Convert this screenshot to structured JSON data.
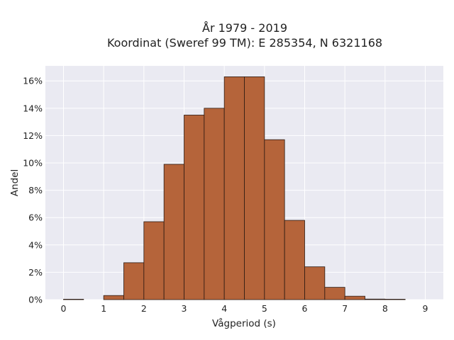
{
  "chart_data": {
    "type": "bar",
    "title_lines": [
      "År 1979 - 2019",
      "Koordinat (Sweref 99 TM): E 285354, N 6321168"
    ],
    "xlabel": "Vågperiod (s)",
    "ylabel": "Andel",
    "bin_width": 0.5,
    "bins": [
      {
        "x0": 0.0,
        "x1": 0.5,
        "value": 0.03
      },
      {
        "x0": 0.5,
        "x1": 1.0,
        "value": 0.0
      },
      {
        "x0": 1.0,
        "x1": 1.5,
        "value": 0.3
      },
      {
        "x0": 1.5,
        "x1": 2.0,
        "value": 2.7
      },
      {
        "x0": 2.0,
        "x1": 2.5,
        "value": 5.7
      },
      {
        "x0": 2.5,
        "x1": 3.0,
        "value": 9.9
      },
      {
        "x0": 3.0,
        "x1": 3.5,
        "value": 13.5
      },
      {
        "x0": 3.5,
        "x1": 4.0,
        "value": 14.0
      },
      {
        "x0": 4.0,
        "x1": 4.5,
        "value": 16.3
      },
      {
        "x0": 4.5,
        "x1": 5.0,
        "value": 16.3
      },
      {
        "x0": 5.0,
        "x1": 5.5,
        "value": 11.7
      },
      {
        "x0": 5.5,
        "x1": 6.0,
        "value": 5.8
      },
      {
        "x0": 6.0,
        "x1": 6.5,
        "value": 2.4
      },
      {
        "x0": 6.5,
        "x1": 7.0,
        "value": 0.9
      },
      {
        "x0": 7.0,
        "x1": 7.5,
        "value": 0.25
      },
      {
        "x0": 7.5,
        "x1": 8.0,
        "value": 0.04
      },
      {
        "x0": 8.0,
        "x1": 8.5,
        "value": 0.03
      }
    ],
    "xlim": [
      -0.45,
      9.45
    ],
    "ylim": [
      0,
      17.1
    ],
    "xticks": [
      0,
      1,
      2,
      3,
      4,
      5,
      6,
      7,
      8,
      9
    ],
    "xtick_labels": [
      "0",
      "1",
      "2",
      "3",
      "4",
      "5",
      "6",
      "7",
      "8",
      "9"
    ],
    "yticks": [
      0,
      2,
      4,
      6,
      8,
      10,
      12,
      14,
      16
    ],
    "ytick_labels": [
      "0%",
      "2%",
      "4%",
      "6%",
      "8%",
      "10%",
      "12%",
      "14%",
      "16%"
    ],
    "grid": true,
    "colors": {
      "bar_fill": "#b5643a",
      "bar_edge": "#2b1a12",
      "plot_bg": "#eaeaf2",
      "grid": "#ffffff"
    }
  }
}
